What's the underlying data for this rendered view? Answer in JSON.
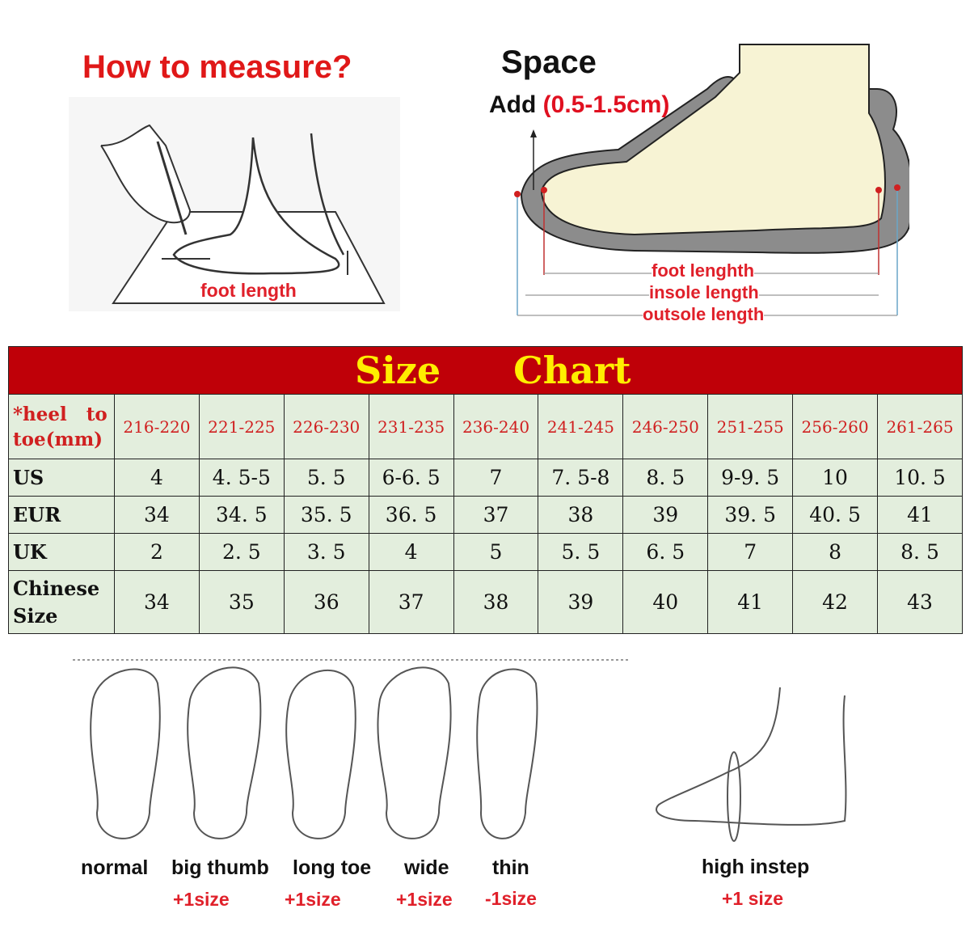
{
  "measure": {
    "title": "How to measure?",
    "foot_length_label": "foot length"
  },
  "space": {
    "title": "Space",
    "add_label": "Add",
    "add_value": "(0.5-1.5cm)",
    "labels": [
      "foot lenghth",
      "insole length",
      "outsole length"
    ]
  },
  "size_chart": {
    "title_left": "Size",
    "title_right": "Chart",
    "header_label_line1": "*heel   to",
    "header_label_line2": "toe(mm)",
    "lengths": [
      "216-220",
      "221-225",
      "226-230",
      "231-235",
      "236-240",
      "241-245",
      "246-250",
      "251-255",
      "256-260",
      "261-265"
    ],
    "rows": [
      {
        "label": "US",
        "values": [
          "4",
          "4. 5-5",
          "5. 5",
          "6-6. 5",
          "7",
          "7. 5-8",
          "8. 5",
          "9-9. 5",
          "10",
          "10. 5"
        ]
      },
      {
        "label": "EUR",
        "values": [
          "34",
          "34. 5",
          "35. 5",
          "36. 5",
          "37",
          "38",
          "39",
          "39. 5",
          "40. 5",
          "41"
        ]
      },
      {
        "label": "UK",
        "values": [
          "2",
          "2. 5",
          "3. 5",
          "4",
          "5",
          "5. 5",
          "6. 5",
          "7",
          "8",
          "8. 5"
        ]
      },
      {
        "label": "Chinese Size",
        "values": [
          "34",
          "35",
          "36",
          "37",
          "38",
          "39",
          "40",
          "41",
          "42",
          "43"
        ]
      }
    ],
    "colors": {
      "title_bg": "#bf0008",
      "title_text": "#ffee00",
      "cell_bg": "#e3eedd",
      "length_text": "#d02020"
    }
  },
  "foot_types": [
    {
      "name": "normal",
      "advice": ""
    },
    {
      "name": "big thumb",
      "advice": "+1size"
    },
    {
      "name": "long toe",
      "advice": "+1size"
    },
    {
      "name": "wide",
      "advice": "+1size"
    },
    {
      "name": "thin",
      "advice": "-1size"
    },
    {
      "name": "high instep",
      "advice": "+1 size"
    }
  ]
}
